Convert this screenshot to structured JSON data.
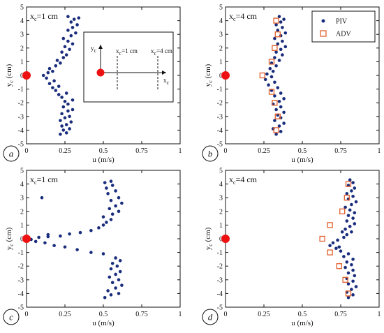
{
  "colors": {
    "piv": "#1a2d7c",
    "adv": "#e25f2b",
    "origin": "#ee1111",
    "axis": "#111111"
  },
  "chart_data": [
    {
      "panel": "a",
      "type": "scatter",
      "xlabel": "u (m/s)",
      "ylabel": "y_c (cm)",
      "ylabel_main": "y",
      "ylabel_sub": "c",
      "ylabel_unit": " (cm)",
      "annotation": "x_c=1 cm",
      "annotation_main": "x",
      "annotation_sub": "c",
      "annotation_rest": "=1 cm",
      "xlim": [
        0,
        1
      ],
      "ylim": [
        -5,
        5
      ],
      "xticks": [
        0,
        0.25,
        0.5,
        0.75,
        1
      ],
      "xticklabels": [
        "0",
        "0.25",
        "0.5",
        "0.75",
        "1"
      ],
      "yticks": [
        -5,
        -4,
        -3,
        -2,
        -1,
        0,
        1,
        2,
        3,
        4,
        5
      ],
      "yticklabels": [
        "-5",
        "-4",
        "-3",
        "-2",
        "-1",
        "0",
        "1",
        "2",
        "3",
        "4",
        "5"
      ],
      "origin_marker": [
        0,
        0
      ],
      "series": [
        {
          "name": "PIV",
          "marker": "dot",
          "points": [
            [
              0.22,
              -4.3
            ],
            [
              0.26,
              -4.2
            ],
            [
              0.24,
              -4.0
            ],
            [
              0.28,
              -3.9
            ],
            [
              0.23,
              -3.7
            ],
            [
              0.26,
              -3.6
            ],
            [
              0.29,
              -3.4
            ],
            [
              0.22,
              -3.3
            ],
            [
              0.25,
              -3.1
            ],
            [
              0.28,
              -3.0
            ],
            [
              0.23,
              -2.8
            ],
            [
              0.27,
              -2.6
            ],
            [
              0.3,
              -2.5
            ],
            [
              0.24,
              -2.3
            ],
            [
              0.27,
              -2.1
            ],
            [
              0.25,
              -1.9
            ],
            [
              0.3,
              -1.8
            ],
            [
              0.23,
              -1.6
            ],
            [
              0.21,
              -1.4
            ],
            [
              0.26,
              -1.3
            ],
            [
              0.19,
              -1.1
            ],
            [
              0.17,
              -0.9
            ],
            [
              0.21,
              -0.8
            ],
            [
              0.15,
              -0.6
            ],
            [
              0.18,
              -0.4
            ],
            [
              0.13,
              -0.2
            ],
            [
              0.11,
              0.0
            ],
            [
              0.14,
              0.2
            ],
            [
              0.17,
              0.3
            ],
            [
              0.15,
              0.5
            ],
            [
              0.19,
              0.7
            ],
            [
              0.22,
              0.9
            ],
            [
              0.2,
              1.1
            ],
            [
              0.24,
              1.3
            ],
            [
              0.26,
              1.5
            ],
            [
              0.23,
              1.7
            ],
            [
              0.28,
              1.9
            ],
            [
              0.25,
              2.1
            ],
            [
              0.3,
              2.3
            ],
            [
              0.27,
              2.5
            ],
            [
              0.24,
              2.7
            ],
            [
              0.29,
              2.9
            ],
            [
              0.32,
              3.1
            ],
            [
              0.27,
              3.3
            ],
            [
              0.3,
              3.5
            ],
            [
              0.33,
              3.7
            ],
            [
              0.29,
              3.9
            ],
            [
              0.31,
              4.1
            ],
            [
              0.34,
              4.2
            ],
            [
              0.27,
              4.3
            ]
          ]
        }
      ],
      "inset": {
        "x_axis_label": "x_c",
        "y_axis_label": "y_c",
        "lines": [
          "x_c=1 cm",
          "x_c=4 cm"
        ]
      }
    },
    {
      "panel": "b",
      "type": "scatter",
      "xlabel": "u (m/s)",
      "ylabel": "y_c (cm)",
      "ylabel_main": "y",
      "ylabel_sub": "c",
      "ylabel_unit": " (cm)",
      "annotation": "x_c=4 cm",
      "annotation_main": "x",
      "annotation_sub": "c",
      "annotation_rest": "=4 cm",
      "xlim": [
        0,
        1
      ],
      "ylim": [
        -5,
        5
      ],
      "xticks": [
        0,
        0.25,
        0.5,
        0.75,
        1
      ],
      "xticklabels": [
        "0",
        "0.25",
        "0.5",
        "0.75",
        "1"
      ],
      "yticks": [
        -5,
        -4,
        -3,
        -2,
        -1,
        0,
        1,
        2,
        3,
        4,
        5
      ],
      "yticklabels": [
        "-5",
        "-4",
        "-3",
        "-2",
        "-1",
        "0",
        "1",
        "2",
        "3",
        "4",
        "5"
      ],
      "origin_marker": [
        0,
        0
      ],
      "legend_position": "top-right",
      "series": [
        {
          "name": "PIV",
          "marker": "dot",
          "points": [
            [
              0.33,
              -4.3
            ],
            [
              0.36,
              -4.1
            ],
            [
              0.31,
              -3.9
            ],
            [
              0.35,
              -3.7
            ],
            [
              0.38,
              -3.5
            ],
            [
              0.32,
              -3.3
            ],
            [
              0.36,
              -3.1
            ],
            [
              0.34,
              -2.9
            ],
            [
              0.38,
              -2.7
            ],
            [
              0.33,
              -2.5
            ],
            [
              0.36,
              -2.3
            ],
            [
              0.31,
              -2.1
            ],
            [
              0.35,
              -1.9
            ],
            [
              0.38,
              -1.7
            ],
            [
              0.32,
              -1.5
            ],
            [
              0.36,
              -1.3
            ],
            [
              0.3,
              -1.1
            ],
            [
              0.34,
              -0.9
            ],
            [
              0.28,
              -0.7
            ],
            [
              0.32,
              -0.5
            ],
            [
              0.26,
              -0.3
            ],
            [
              0.3,
              -0.1
            ],
            [
              0.27,
              0.1
            ],
            [
              0.31,
              0.3
            ],
            [
              0.29,
              0.5
            ],
            [
              0.33,
              0.7
            ],
            [
              0.3,
              0.9
            ],
            [
              0.35,
              1.1
            ],
            [
              0.32,
              1.3
            ],
            [
              0.37,
              1.5
            ],
            [
              0.33,
              1.7
            ],
            [
              0.36,
              1.9
            ],
            [
              0.39,
              2.1
            ],
            [
              0.34,
              2.3
            ],
            [
              0.37,
              2.5
            ],
            [
              0.32,
              2.7
            ],
            [
              0.36,
              2.9
            ],
            [
              0.39,
              3.1
            ],
            [
              0.34,
              3.3
            ],
            [
              0.37,
              3.5
            ],
            [
              0.33,
              3.7
            ],
            [
              0.36,
              3.9
            ],
            [
              0.38,
              4.1
            ],
            [
              0.35,
              4.3
            ]
          ]
        },
        {
          "name": "ADV",
          "marker": "square",
          "points": [
            [
              0.33,
              -4.0
            ],
            [
              0.34,
              -3.0
            ],
            [
              0.32,
              -2.0
            ],
            [
              0.3,
              -1.2
            ],
            [
              0.24,
              0.0
            ],
            [
              0.3,
              1.0
            ],
            [
              0.32,
              2.0
            ],
            [
              0.34,
              3.0
            ],
            [
              0.33,
              4.0
            ]
          ]
        }
      ]
    },
    {
      "panel": "c",
      "type": "scatter",
      "xlabel": "u (m/s)",
      "ylabel": "y_c (cm)",
      "ylabel_main": "y",
      "ylabel_sub": "c",
      "ylabel_unit": " (cm)",
      "annotation": "x_c=1 cm",
      "annotation_main": "x",
      "annotation_sub": "c",
      "annotation_rest": "=1 cm",
      "xlim": [
        0,
        1
      ],
      "ylim": [
        -5,
        5
      ],
      "xticks": [
        0,
        0.25,
        0.5,
        0.75,
        1
      ],
      "xticklabels": [
        "0",
        "0.25",
        "0.5",
        "0.75",
        "1"
      ],
      "yticks": [
        -5,
        -4,
        -3,
        -2,
        -1,
        0,
        1,
        2,
        3,
        4,
        5
      ],
      "yticklabels": [
        "-5",
        "-4",
        "-3",
        "-2",
        "-1",
        "0",
        "1",
        "2",
        "3",
        "4",
        "5"
      ],
      "origin_marker": [
        0,
        0
      ],
      "series": [
        {
          "name": "PIV",
          "marker": "dot",
          "points": [
            [
              0.51,
              -4.3
            ],
            [
              0.55,
              -4.1
            ],
            [
              0.6,
              -4.0
            ],
            [
              0.53,
              -3.8
            ],
            [
              0.58,
              -3.6
            ],
            [
              0.62,
              -3.4
            ],
            [
              0.56,
              -3.2
            ],
            [
              0.6,
              -3.0
            ],
            [
              0.54,
              -2.8
            ],
            [
              0.58,
              -2.6
            ],
            [
              0.61,
              -2.4
            ],
            [
              0.55,
              -2.2
            ],
            [
              0.59,
              -2.0
            ],
            [
              0.56,
              -1.8
            ],
            [
              0.61,
              -1.6
            ],
            [
              0.58,
              -1.4
            ],
            [
              0.5,
              -1.1
            ],
            [
              0.42,
              -1.0
            ],
            [
              0.33,
              -0.8
            ],
            [
              0.25,
              -0.6
            ],
            [
              0.18,
              -0.5
            ],
            [
              0.12,
              -0.3
            ],
            [
              0.06,
              -0.2
            ],
            [
              0.03,
              -0.05
            ],
            [
              0.08,
              0.1
            ],
            [
              0.14,
              0.15
            ],
            [
              0.22,
              0.2
            ],
            [
              0.28,
              0.35
            ],
            [
              0.35,
              0.45
            ],
            [
              0.42,
              0.6
            ],
            [
              0.47,
              0.8
            ],
            [
              0.5,
              1.0
            ],
            [
              0.52,
              1.2
            ],
            [
              0.55,
              1.4
            ],
            [
              0.5,
              1.6
            ],
            [
              0.56,
              1.8
            ],
            [
              0.6,
              2.0
            ],
            [
              0.54,
              2.2
            ],
            [
              0.58,
              2.4
            ],
            [
              0.62,
              2.6
            ],
            [
              0.55,
              2.8
            ],
            [
              0.6,
              3.0
            ],
            [
              0.53,
              3.3
            ],
            [
              0.58,
              3.5
            ],
            [
              0.52,
              3.7
            ],
            [
              0.56,
              3.9
            ],
            [
              0.51,
              4.1
            ],
            [
              0.55,
              4.2
            ],
            [
              0.1,
              3.0
            ],
            [
              0.14,
              0.3
            ]
          ]
        }
      ]
    },
    {
      "panel": "d",
      "type": "scatter",
      "xlabel": "u (m/s)",
      "ylabel": "y_c (cm)",
      "ylabel_main": "y",
      "ylabel_sub": "c",
      "ylabel_unit": " (cm)",
      "annotation": "x_c=4 cm",
      "annotation_main": "x",
      "annotation_sub": "c",
      "annotation_rest": "=4 cm",
      "xlim": [
        0,
        1
      ],
      "ylim": [
        -5,
        5
      ],
      "xticks": [
        0,
        0.25,
        0.5,
        0.75,
        1
      ],
      "xticklabels": [
        "0",
        "0.25",
        "0.5",
        "0.75",
        "1"
      ],
      "yticks": [
        -5,
        -4,
        -3,
        -2,
        -1,
        0,
        1,
        2,
        3,
        4,
        5
      ],
      "yticklabels": [
        "-5",
        "-4",
        "-3",
        "-2",
        "-1",
        "0",
        "1",
        "2",
        "3",
        "4",
        "5"
      ],
      "origin_marker": [
        0,
        0
      ],
      "series": [
        {
          "name": "PIV",
          "marker": "dot",
          "points": [
            [
              0.8,
              -4.3
            ],
            [
              0.83,
              -4.1
            ],
            [
              0.79,
              -3.9
            ],
            [
              0.82,
              -3.7
            ],
            [
              0.85,
              -3.5
            ],
            [
              0.8,
              -3.3
            ],
            [
              0.83,
              -3.1
            ],
            [
              0.79,
              -2.9
            ],
            [
              0.84,
              -2.7
            ],
            [
              0.8,
              -2.5
            ],
            [
              0.83,
              -2.3
            ],
            [
              0.78,
              -2.1
            ],
            [
              0.82,
              -1.9
            ],
            [
              0.79,
              -1.7
            ],
            [
              0.83,
              -1.5
            ],
            [
              0.77,
              -1.3
            ],
            [
              0.8,
              -1.1
            ],
            [
              0.75,
              -0.9
            ],
            [
              0.72,
              -0.7
            ],
            [
              0.68,
              -0.5
            ],
            [
              0.7,
              -0.3
            ],
            [
              0.73,
              -0.1
            ],
            [
              0.77,
              0.1
            ],
            [
              0.79,
              0.3
            ],
            [
              0.82,
              0.5
            ],
            [
              0.78,
              0.7
            ],
            [
              0.81,
              0.9
            ],
            [
              0.84,
              1.1
            ],
            [
              0.79,
              1.3
            ],
            [
              0.83,
              1.5
            ],
            [
              0.8,
              1.7
            ],
            [
              0.84,
              1.9
            ],
            [
              0.81,
              2.1
            ],
            [
              0.78,
              2.3
            ],
            [
              0.82,
              2.5
            ],
            [
              0.85,
              2.7
            ],
            [
              0.8,
              2.9
            ],
            [
              0.83,
              3.1
            ],
            [
              0.79,
              3.3
            ],
            [
              0.82,
              3.5
            ],
            [
              0.84,
              3.7
            ],
            [
              0.8,
              3.9
            ],
            [
              0.83,
              4.1
            ],
            [
              0.81,
              4.3
            ],
            [
              0.74,
              -0.6
            ],
            [
              0.76,
              0.5
            ]
          ]
        },
        {
          "name": "ADV",
          "marker": "square",
          "points": [
            [
              0.8,
              -4.0
            ],
            [
              0.78,
              -3.0
            ],
            [
              0.74,
              -2.0
            ],
            [
              0.68,
              -1.0
            ],
            [
              0.63,
              0.0
            ],
            [
              0.68,
              1.0
            ],
            [
              0.76,
              2.0
            ],
            [
              0.79,
              3.0
            ],
            [
              0.8,
              4.0
            ]
          ]
        }
      ]
    }
  ]
}
